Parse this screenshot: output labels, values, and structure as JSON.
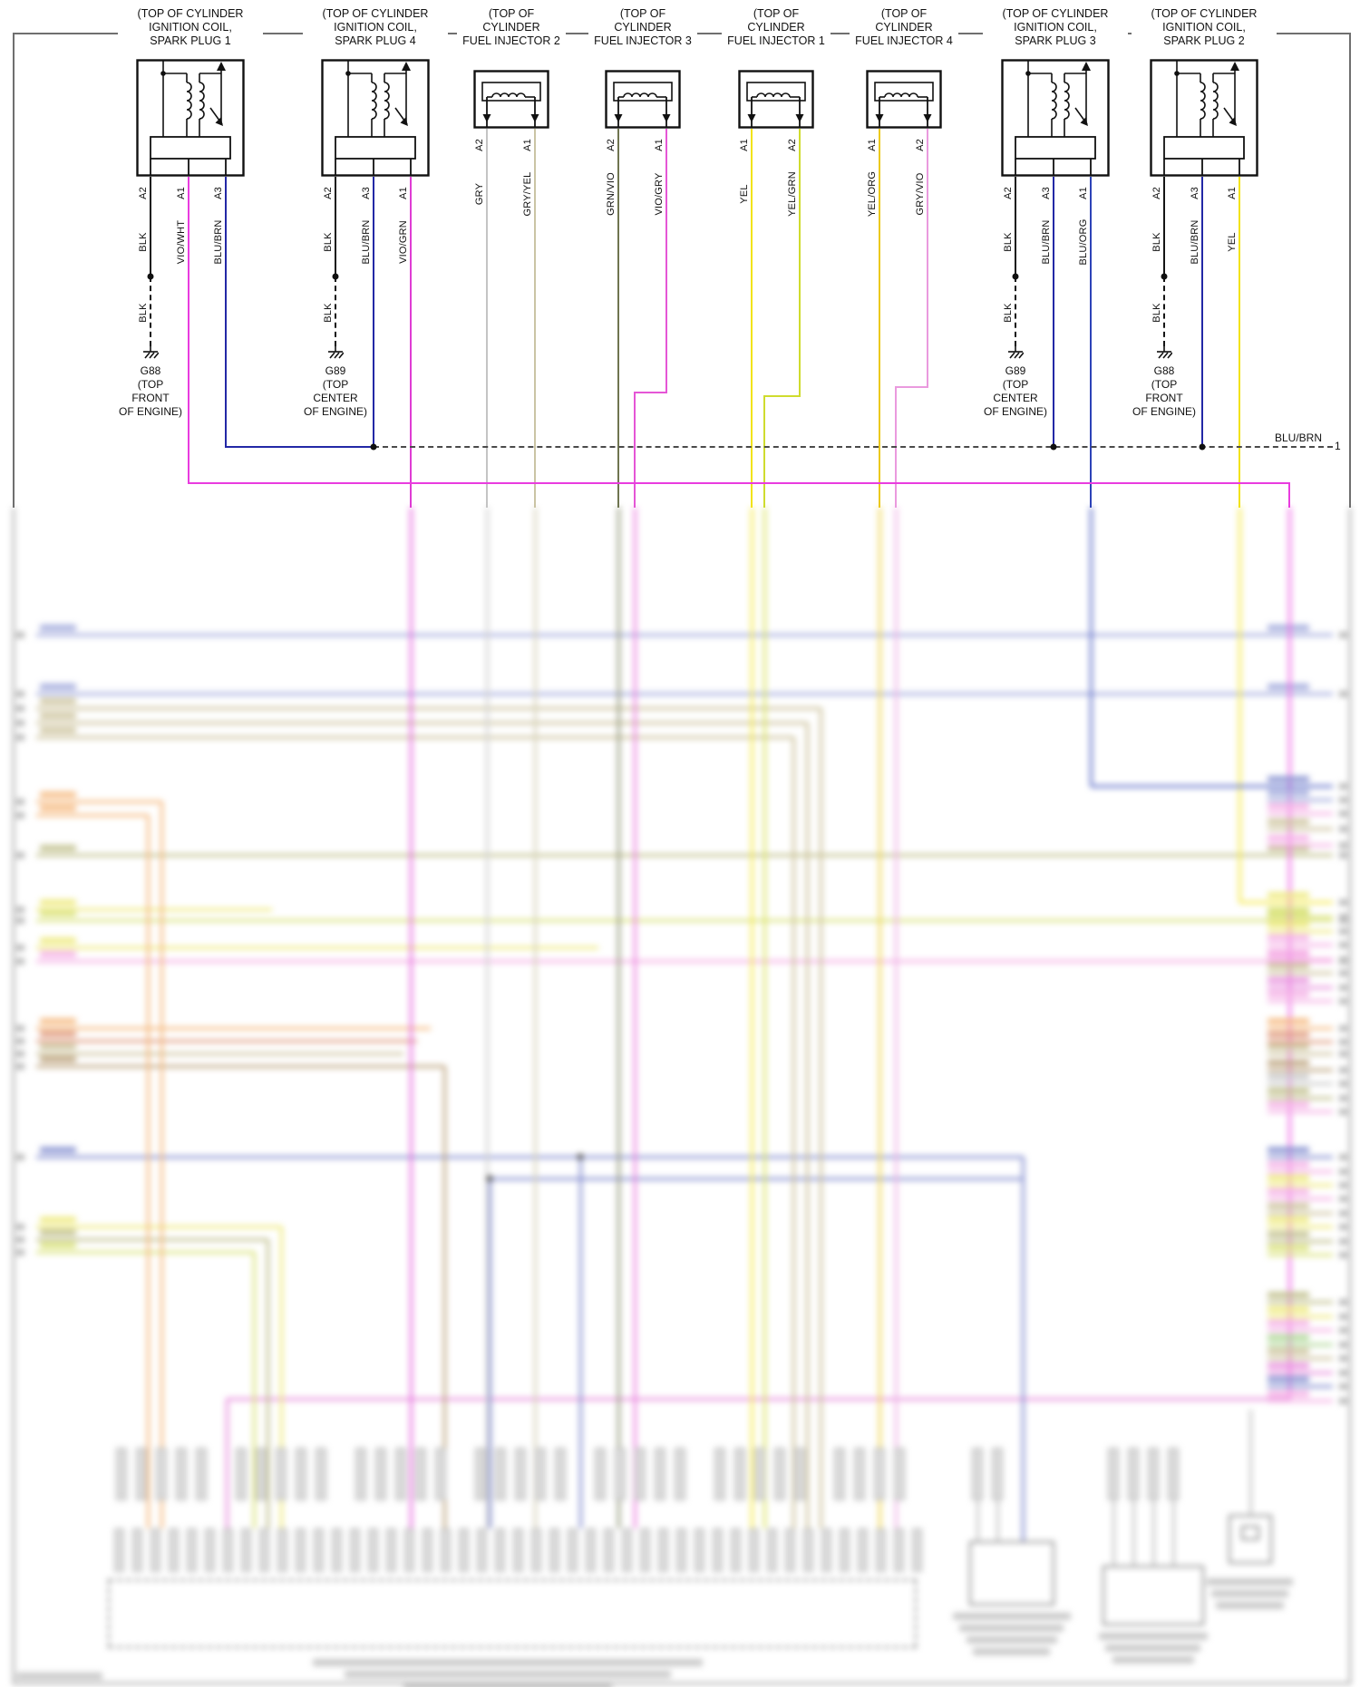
{
  "page": {
    "bus": {
      "label": "BLU/BRN",
      "wire_number": "1"
    }
  },
  "components": [
    {
      "name": "ignition-coil-spark-plug-1",
      "type": "ignition-coil",
      "label_lines": [
        "(TOP OF CYLINDER",
        "IGNITION COIL,",
        "SPARK PLUG 1"
      ],
      "pins": [
        "A2",
        "A1",
        "A3"
      ],
      "wire_colors": [
        "BLK",
        "VIO/WHT",
        "BLU/BRN"
      ]
    },
    {
      "name": "ignition-coil-spark-plug-4",
      "type": "ignition-coil",
      "label_lines": [
        "(TOP OF CYLINDER",
        "IGNITION COIL,",
        "SPARK PLUG 4"
      ],
      "pins": [
        "A2",
        "A3",
        "A1"
      ],
      "wire_colors": [
        "BLK",
        "BLU/BRN",
        "VIO/GRN"
      ]
    },
    {
      "name": "fuel-injector-2",
      "type": "fuel-injector",
      "label_lines": [
        "(TOP OF",
        "CYLINDER",
        "FUEL INJECTOR 2"
      ],
      "pins": [
        "A2",
        "A1"
      ],
      "wire_colors": [
        "GRY",
        "GRY/YEL"
      ]
    },
    {
      "name": "fuel-injector-3",
      "type": "fuel-injector",
      "label_lines": [
        "(TOP OF",
        "CYLINDER",
        "FUEL INJECTOR 3"
      ],
      "pins": [
        "A2",
        "A1"
      ],
      "wire_colors": [
        "GRN/VIO",
        "VIO/GRY"
      ]
    },
    {
      "name": "fuel-injector-1",
      "type": "fuel-injector",
      "label_lines": [
        "(TOP OF",
        "CYLINDER",
        "FUEL INJECTOR 1"
      ],
      "pins": [
        "A1",
        "A2"
      ],
      "wire_colors": [
        "YEL",
        "YEL/GRN"
      ]
    },
    {
      "name": "fuel-injector-4",
      "type": "fuel-injector",
      "label_lines": [
        "(TOP OF",
        "CYLINDER",
        "FUEL INJECTOR 4"
      ],
      "pins": [
        "A1",
        "A2"
      ],
      "wire_colors": [
        "YEL/ORG",
        "GRY/VIO"
      ]
    },
    {
      "name": "ignition-coil-spark-plug-3",
      "type": "ignition-coil",
      "label_lines": [
        "(TOP OF CYLINDER",
        "IGNITION COIL,",
        "SPARK PLUG 3"
      ],
      "pins": [
        "A2",
        "A3",
        "A1"
      ],
      "wire_colors": [
        "BLK",
        "BLU/BRN",
        "BLU/ORG"
      ]
    },
    {
      "name": "ignition-coil-spark-plug-2",
      "type": "ignition-coil",
      "label_lines": [
        "(TOP OF CYLINDER",
        "IGNITION COIL,",
        "SPARK PLUG 2"
      ],
      "pins": [
        "A2",
        "A3",
        "A1"
      ],
      "wire_colors": [
        "BLK",
        "BLU/BRN",
        "YEL"
      ]
    }
  ],
  "grounds": [
    {
      "wire": "BLK",
      "name": "G88",
      "location_lines": [
        "(TOP",
        "FRONT",
        "OF ENGINE)"
      ]
    },
    {
      "wire": "BLK",
      "name": "G89",
      "location_lines": [
        "(TOP",
        "CENTER",
        "OF ENGINE)"
      ]
    },
    {
      "wire": "BLK",
      "name": "G89",
      "location_lines": [
        "(TOP",
        "CENTER",
        "OF ENGINE)"
      ]
    },
    {
      "wire": "BLK",
      "name": "G88",
      "location_lines": [
        "(TOP",
        "FRONT",
        "OF ENGINE)"
      ]
    }
  ],
  "wire_palette": {
    "BLK": "#141414",
    "VIO/WHT": "#e93cdf",
    "BLU/BRN": "#2328a6",
    "VIO/GRN": "#df3cd4",
    "GRY": "#c4c4c4",
    "GRY/YEL": "#cac4a4",
    "GRN/VIO": "#6f7550",
    "VIO/GRY": "#e556d6",
    "YEL": "#f2e313",
    "YEL/GRN": "#cfdc2e",
    "YEL/ORG": "#ecc91c",
    "GRY/VIO": "#ea9ade",
    "BLU/ORG": "#2d43b8"
  }
}
